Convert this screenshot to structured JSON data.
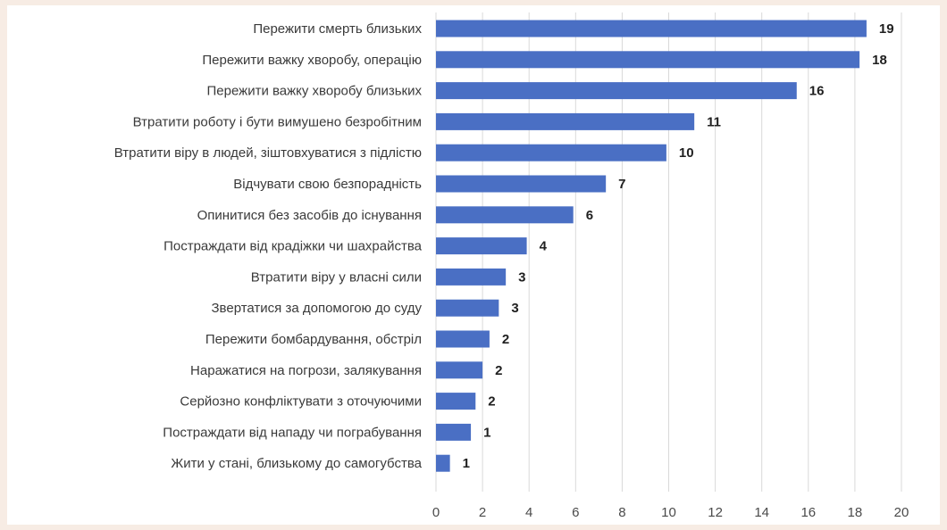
{
  "chart_data": {
    "type": "bar",
    "orientation": "horizontal",
    "title": "",
    "xlabel": "",
    "ylabel": "",
    "categories": [
      "Пережити смерть близьких",
      "Пережити важку хворобу, операцію",
      "Пережити важку хворобу близьких",
      "Втратити роботу і бути вимушено безробітним",
      "Втратити віру в людей, зіштовхуватися з підлістю",
      "Відчувати свою безпорадність",
      "Опинитися без засобів до існування",
      "Постраждати від крадіжки чи шахрайства",
      "Втратити віру у власні сили",
      "Звертатися за допомогою до суду",
      "Пережити бомбардування, обстріл",
      "Наражатися на погрози, залякування",
      "Серйозно конфліктувати з оточуючими",
      "Постраждати від нападу чи пограбування",
      "Жити у стані, близькому до самогубства"
    ],
    "values": [
      19,
      18,
      16,
      11,
      10,
      7,
      6,
      4,
      3,
      3,
      2,
      2,
      2,
      1,
      1
    ],
    "bar_lengths": [
      18.5,
      18.2,
      15.5,
      11.1,
      9.9,
      7.3,
      5.9,
      3.9,
      3.0,
      2.7,
      2.3,
      2.0,
      1.7,
      1.5,
      0.6
    ],
    "xlim": [
      0,
      20
    ],
    "xticks": [
      0,
      2,
      4,
      6,
      8,
      10,
      12,
      14,
      16,
      18,
      20
    ],
    "grid": "vertical",
    "legend": "none",
    "colors": {
      "bar": "#4a6fc4",
      "grid": "#d9d9d9",
      "background": "#ffffff",
      "page": "#f7ece4"
    }
  }
}
